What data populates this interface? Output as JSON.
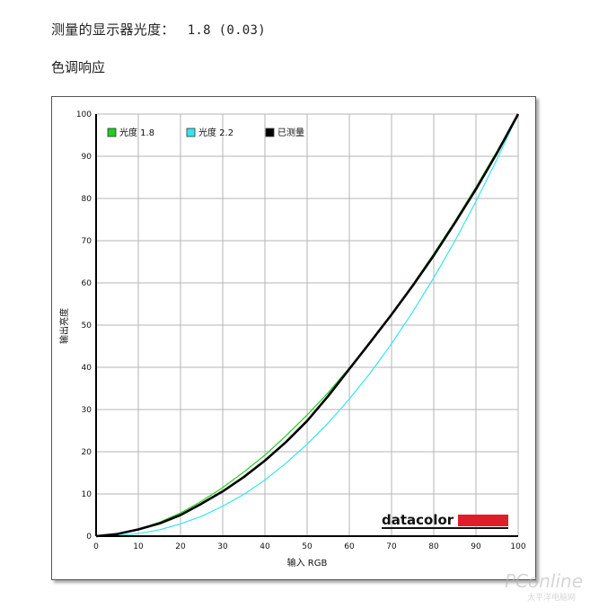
{
  "measured": {
    "label": "测量的显示器光度：",
    "value": "1.8 (0.03)"
  },
  "section_title": "色调响应",
  "brand_logo_text": "datacolor",
  "watermark": {
    "main": "PConline",
    "sub": "太平洋电脑网"
  },
  "colors": {
    "gamma18": "#22cc22",
    "gamma22": "#33e6ee",
    "measured": "#000000",
    "brand_red": "#e01e2b"
  },
  "chart_data": {
    "type": "line",
    "xlabel": "输入 RGB",
    "ylabel": "输出亮度",
    "xlim": [
      0,
      100
    ],
    "ylim": [
      0,
      100
    ],
    "xticks": [
      "0",
      "10",
      "20",
      "30",
      "40",
      "50",
      "60",
      "70",
      "80",
      "90",
      "100"
    ],
    "yticks": [
      "0",
      "10",
      "20",
      "30",
      "40",
      "50",
      "60",
      "70",
      "80",
      "90",
      "100"
    ],
    "grid": true,
    "legend_position": "top-left",
    "x": [
      0,
      5,
      10,
      15,
      20,
      25,
      30,
      35,
      40,
      45,
      50,
      55,
      60,
      65,
      70,
      75,
      80,
      85,
      90,
      95,
      100
    ],
    "series": [
      {
        "name": "光度 1.8",
        "color": "#22cc22",
        "width": 1.2,
        "values": [
          0,
          0.5,
          1.6,
          3.3,
          5.5,
          8.3,
          11.5,
          15.2,
          19.2,
          23.8,
          28.7,
          34.0,
          39.9,
          46.0,
          52.6,
          59.6,
          66.9,
          74.6,
          82.7,
          91.2,
          100
        ]
      },
      {
        "name": "光度 2.2",
        "color": "#33e6ee",
        "width": 1.2,
        "values": [
          0,
          0.1,
          0.6,
          1.5,
          2.9,
          4.7,
          7.1,
          9.9,
          13.3,
          17.3,
          21.8,
          26.8,
          32.5,
          38.7,
          45.6,
          53.1,
          61.2,
          69.9,
          79.3,
          89.3,
          100
        ]
      },
      {
        "name": "已测量",
        "color": "#000000",
        "width": 2.6,
        "values": [
          0,
          0.5,
          1.6,
          3.0,
          5.0,
          7.7,
          10.6,
          14.0,
          17.9,
          22.3,
          27.3,
          33.2,
          39.6,
          46.0,
          52.5,
          59.3,
          66.5,
          74.2,
          82.2,
          90.8,
          100
        ]
      }
    ]
  }
}
